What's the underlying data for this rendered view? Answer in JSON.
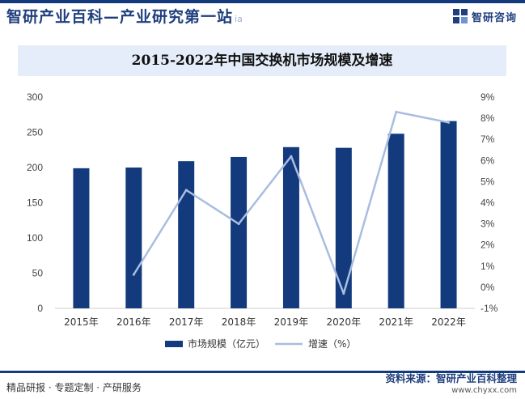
{
  "header": {
    "title": "智研产业百科—产业研究第一站",
    "title_tail": "ia",
    "logo_text": "智研咨询",
    "brand_color": "#1f3f7d"
  },
  "footer": {
    "left_text": "精品研报 · 专题定制 · 产研服务",
    "source_text": "资料来源：智研产业百科整理",
    "url_text": "www.chyxx.com"
  },
  "chart_data": {
    "type": "bar",
    "title": "2015-2022年中国交换机市场规模及增速",
    "categories": [
      "2015年",
      "2016年",
      "2017年",
      "2018年",
      "2019年",
      "2020年",
      "2021年",
      "2022年"
    ],
    "series": [
      {
        "name": "市场规模（亿元）",
        "type": "bar",
        "axis": "left",
        "color": "#123a7c",
        "values": [
          199,
          200,
          209,
          215,
          229,
          228,
          248,
          266
        ]
      },
      {
        "name": "增速（%）",
        "type": "line",
        "axis": "right",
        "color": "#a8bde0",
        "values": [
          null,
          0.6,
          4.6,
          3.0,
          6.2,
          -0.3,
          8.3,
          7.8
        ]
      }
    ],
    "y_left": {
      "min": 0,
      "max": 300,
      "ticks": [
        "0",
        "50",
        "100",
        "150",
        "200",
        "250",
        "300"
      ]
    },
    "y_right": {
      "min": -1,
      "max": 9,
      "ticks": [
        "-1%",
        "0%",
        "1%",
        "2%",
        "3%",
        "4%",
        "5%",
        "6%",
        "7%",
        "8%",
        "9%"
      ]
    },
    "grid": false,
    "legend_position": "bottom"
  }
}
